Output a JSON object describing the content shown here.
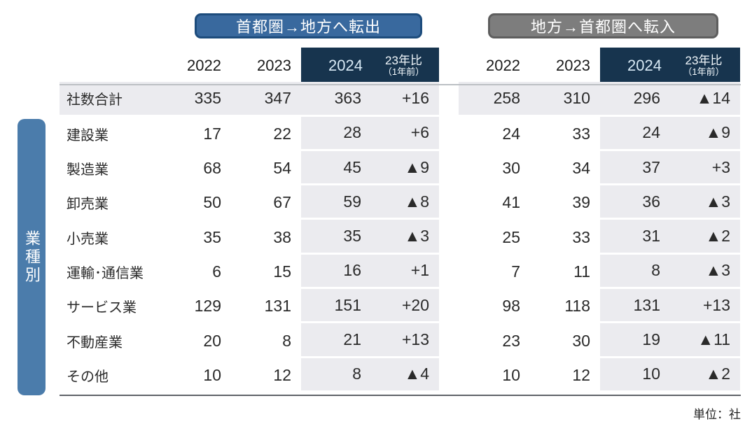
{
  "banners": {
    "out": "首都圏→地方へ転出",
    "in": "地方→首都圏へ転入"
  },
  "sidebar": {
    "label": "業種別"
  },
  "columns": {
    "y2022": "2022",
    "y2023": "2023",
    "y2024": "2024",
    "diff": "23年比",
    "diff_sub": "（1年前）"
  },
  "unit_note": "単位：社",
  "colors": {
    "banner_out_bg": "#39699e",
    "banner_out_border": "#1d4c7c",
    "banner_in_bg": "#7d7d7d",
    "banner_in_border": "#5e5e5e",
    "dark_header_bg": "#17344e",
    "highlight_bg": "#ebebef",
    "sidebar_bg": "#4b7cab"
  },
  "chart_data": {
    "type": "table",
    "title_left_group": "首都圏→地方へ転出",
    "title_right_group": "地方→首都圏へ転入",
    "row_axis_label": "業種別",
    "unit": "単位：社",
    "column_headers": [
      "2022",
      "2023",
      "2024",
      "23年比（1年前）"
    ],
    "rows": [
      {
        "label": "社数合計",
        "out": [
          "335",
          "347",
          "363",
          "+16"
        ],
        "in": [
          "258",
          "310",
          "296",
          "▲14"
        ],
        "total": true
      },
      {
        "label": "建設業",
        "out": [
          "17",
          "22",
          "28",
          "+6"
        ],
        "in": [
          "24",
          "33",
          "24",
          "▲9"
        ]
      },
      {
        "label": "製造業",
        "out": [
          "68",
          "54",
          "45",
          "▲9"
        ],
        "in": [
          "30",
          "34",
          "37",
          "+3"
        ]
      },
      {
        "label": "卸売業",
        "out": [
          "50",
          "67",
          "59",
          "▲8"
        ],
        "in": [
          "41",
          "39",
          "36",
          "▲3"
        ]
      },
      {
        "label": "小売業",
        "out": [
          "35",
          "38",
          "35",
          "▲3"
        ],
        "in": [
          "25",
          "33",
          "31",
          "▲2"
        ]
      },
      {
        "label": "運輸･通信業",
        "out": [
          "6",
          "15",
          "16",
          "+1"
        ],
        "in": [
          "7",
          "11",
          "8",
          "▲3"
        ]
      },
      {
        "label": "サービス業",
        "out": [
          "129",
          "131",
          "151",
          "+20"
        ],
        "in": [
          "98",
          "118",
          "131",
          "+13"
        ]
      },
      {
        "label": "不動産業",
        "out": [
          "20",
          "8",
          "21",
          "+13"
        ],
        "in": [
          "23",
          "30",
          "19",
          "▲11"
        ]
      },
      {
        "label": "その他",
        "out": [
          "10",
          "12",
          "8",
          "▲4"
        ],
        "in": [
          "10",
          "12",
          "10",
          "▲2"
        ]
      }
    ]
  }
}
